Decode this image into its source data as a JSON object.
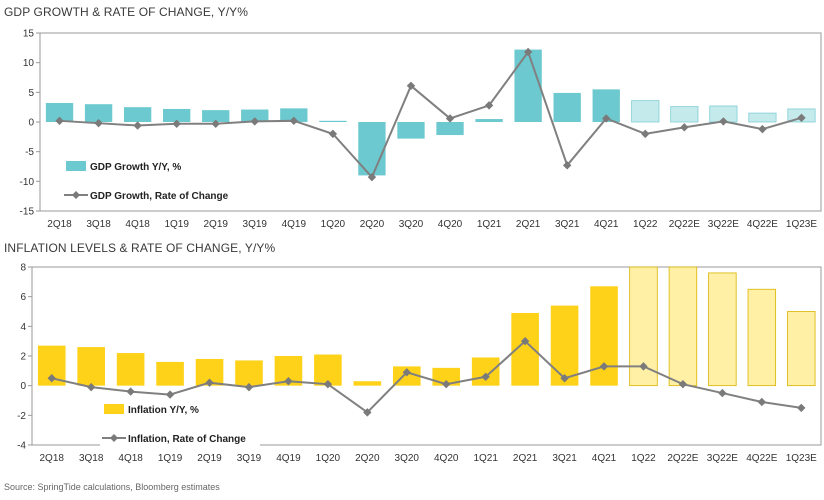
{
  "source": "Source: SpringTide calculations, Bloomberg estimates",
  "colors": {
    "gdp_bar": "#6cc9cf",
    "gdp_bar_est": "#c4eaec",
    "inf_bar": "#ffd21a",
    "inf_bar_est": "#fff0a6",
    "line": "#808080",
    "marker": "#7a7a7a",
    "frame": "#9a9a9a"
  },
  "chart_data": [
    {
      "type": "bar",
      "title": "GDP GROWTH & RATE OF CHANGE, Y/Y%",
      "categories": [
        "2Q18",
        "3Q18",
        "4Q18",
        "1Q19",
        "2Q19",
        "3Q19",
        "4Q19",
        "1Q20",
        "2Q20",
        "3Q20",
        "4Q20",
        "1Q21",
        "2Q21",
        "3Q21",
        "4Q21",
        "1Q22",
        "2Q22E",
        "3Q22E",
        "4Q22E",
        "1Q23E"
      ],
      "estimated_from_index": 15,
      "ylim": [
        -15,
        15
      ],
      "yticks": [
        15,
        10,
        5,
        0,
        -5,
        -10,
        -15
      ],
      "grid": false,
      "legend_position": "lower-left",
      "series": [
        {
          "name": "GDP Growth Y/Y, %",
          "type": "bar",
          "values": [
            3.2,
            3.0,
            2.5,
            2.2,
            2.0,
            2.1,
            2.3,
            0.2,
            -9.0,
            -2.8,
            -2.2,
            0.5,
            12.2,
            4.9,
            5.5,
            3.6,
            2.6,
            2.7,
            1.5,
            2.2
          ]
        },
        {
          "name": "GDP Growth, Rate of Change",
          "type": "line",
          "values": [
            0.2,
            -0.2,
            -0.6,
            -0.3,
            -0.3,
            0.1,
            0.2,
            -2.0,
            -9.3,
            6.1,
            0.6,
            2.8,
            11.8,
            -7.3,
            0.6,
            -2.0,
            -0.9,
            0.1,
            -1.2,
            0.7
          ]
        }
      ]
    },
    {
      "type": "bar",
      "title": "INFLATION LEVELS & RATE OF CHANGE, Y/Y%",
      "categories": [
        "2Q18",
        "3Q18",
        "4Q18",
        "1Q19",
        "2Q19",
        "3Q19",
        "4Q19",
        "1Q20",
        "2Q20",
        "3Q20",
        "4Q20",
        "1Q21",
        "2Q21",
        "3Q21",
        "4Q21",
        "1Q22",
        "2Q22E",
        "3Q22E",
        "4Q22E",
        "1Q23E"
      ],
      "estimated_from_index": 15,
      "ylim": [
        -4,
        8
      ],
      "yticks": [
        8,
        6,
        4,
        2,
        0,
        -2,
        -4
      ],
      "grid": false,
      "legend_position": "lower-left",
      "series": [
        {
          "name": "Inflation Y/Y, %",
          "type": "bar",
          "values": [
            2.7,
            2.6,
            2.2,
            1.6,
            1.8,
            1.7,
            2.0,
            2.1,
            0.3,
            1.3,
            1.2,
            1.9,
            4.9,
            5.4,
            6.7,
            8.0,
            8.0,
            7.6,
            6.5,
            5.0
          ]
        },
        {
          "name": "Inflation, Rate of Change",
          "type": "line",
          "values": [
            0.5,
            -0.1,
            -0.4,
            -0.6,
            0.2,
            -0.1,
            0.3,
            0.1,
            -1.8,
            0.9,
            0.1,
            0.6,
            3.0,
            0.5,
            1.3,
            1.3,
            0.1,
            -0.5,
            -1.1,
            -1.5
          ]
        }
      ]
    }
  ]
}
